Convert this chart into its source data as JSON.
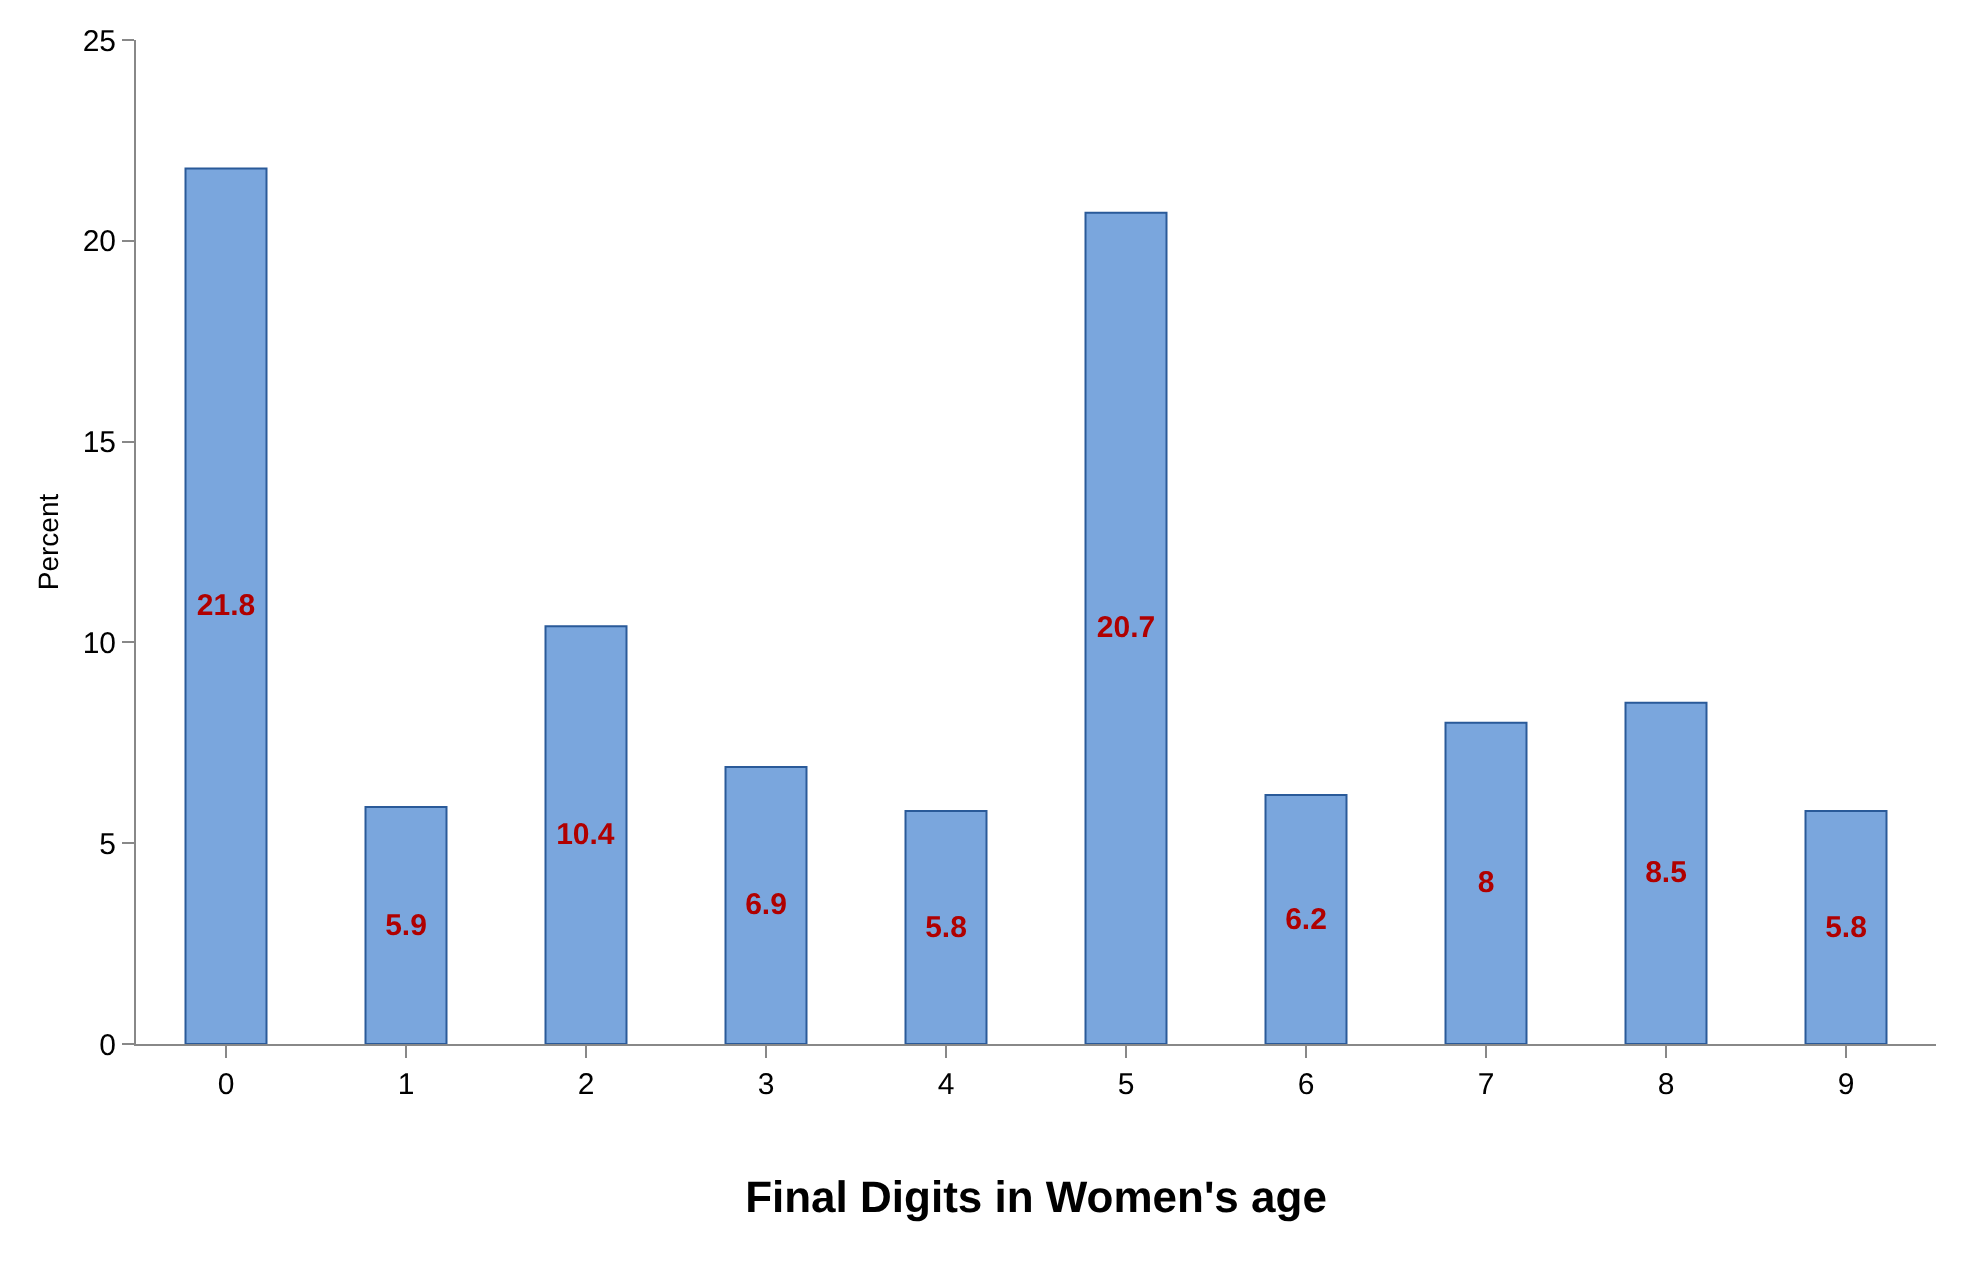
{
  "chart_data": {
    "type": "bar",
    "xlabel": "Final Digits in Women's age",
    "ylabel": "Percent",
    "categories": [
      "0",
      "1",
      "2",
      "3",
      "4",
      "5",
      "6",
      "7",
      "8",
      "9"
    ],
    "values": [
      21.8,
      5.9,
      10.4,
      6.9,
      5.8,
      20.7,
      6.2,
      8,
      8.5,
      5.8
    ],
    "color": "#7aa6dd",
    "data_labels": true,
    "ylim": [
      0,
      25
    ],
    "yticks": [
      0,
      5,
      10,
      15,
      20,
      25
    ],
    "grid": false,
    "legend": false
  }
}
